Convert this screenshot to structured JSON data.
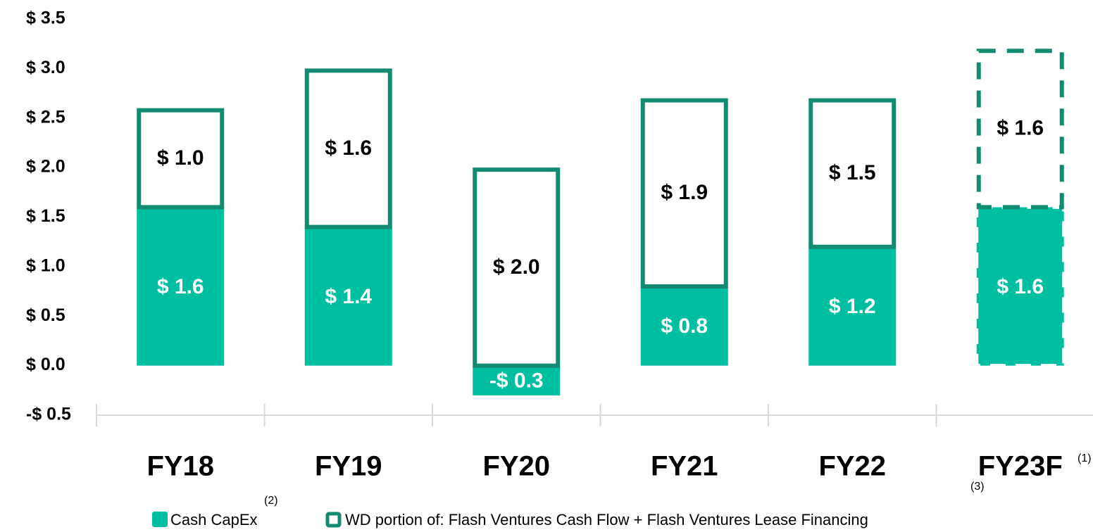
{
  "chart_data": {
    "type": "stacked_bar",
    "categories": [
      "FY18",
      "FY19",
      "FY20",
      "FY21",
      "FY22",
      "FY23F"
    ],
    "series": [
      {
        "name": "Cash CapEx",
        "color": "#00bfa0",
        "values": [
          1.6,
          1.4,
          -0.3,
          0.8,
          1.2,
          1.6
        ],
        "value_labels": [
          "$ 1.6",
          "$ 1.4",
          "-$ 0.3",
          "$ 0.8",
          "$ 1.2",
          "$ 1.6"
        ]
      },
      {
        "name": "WD portion of: Flash Ventures Cash Flow + Flash Ventures Lease Financing",
        "color": "#138a72",
        "values": [
          1.0,
          1.6,
          2.0,
          1.9,
          1.5,
          1.6
        ],
        "value_labels": [
          "$ 1.0",
          "$ 1.6",
          "$ 2.0",
          "$ 1.9",
          "$ 1.5",
          "$ 1.6"
        ]
      }
    ],
    "dashed": [
      false,
      false,
      false,
      false,
      false,
      true
    ],
    "annotations": [
      "(1)",
      "(2)",
      "(3)"
    ],
    "ylim": [
      -0.5,
      3.5
    ],
    "yticks": [
      {
        "value": -0.5,
        "label": "-$ 0.5"
      },
      {
        "value": 0,
        "label": "$ 0.0"
      },
      {
        "value": 0.5,
        "label": "$ 0.5"
      },
      {
        "value": 1.0,
        "label": "$ 1.0"
      },
      {
        "value": 1.5,
        "label": "$ 1.5"
      },
      {
        "value": 2.0,
        "label": "$ 2.0"
      },
      {
        "value": 2.5,
        "label": "$ 2.5"
      },
      {
        "value": 3.0,
        "label": "$ 3.0"
      },
      {
        "value": 3.5,
        "label": "$ 3.5"
      }
    ],
    "grid": false,
    "legend": "bottom"
  }
}
